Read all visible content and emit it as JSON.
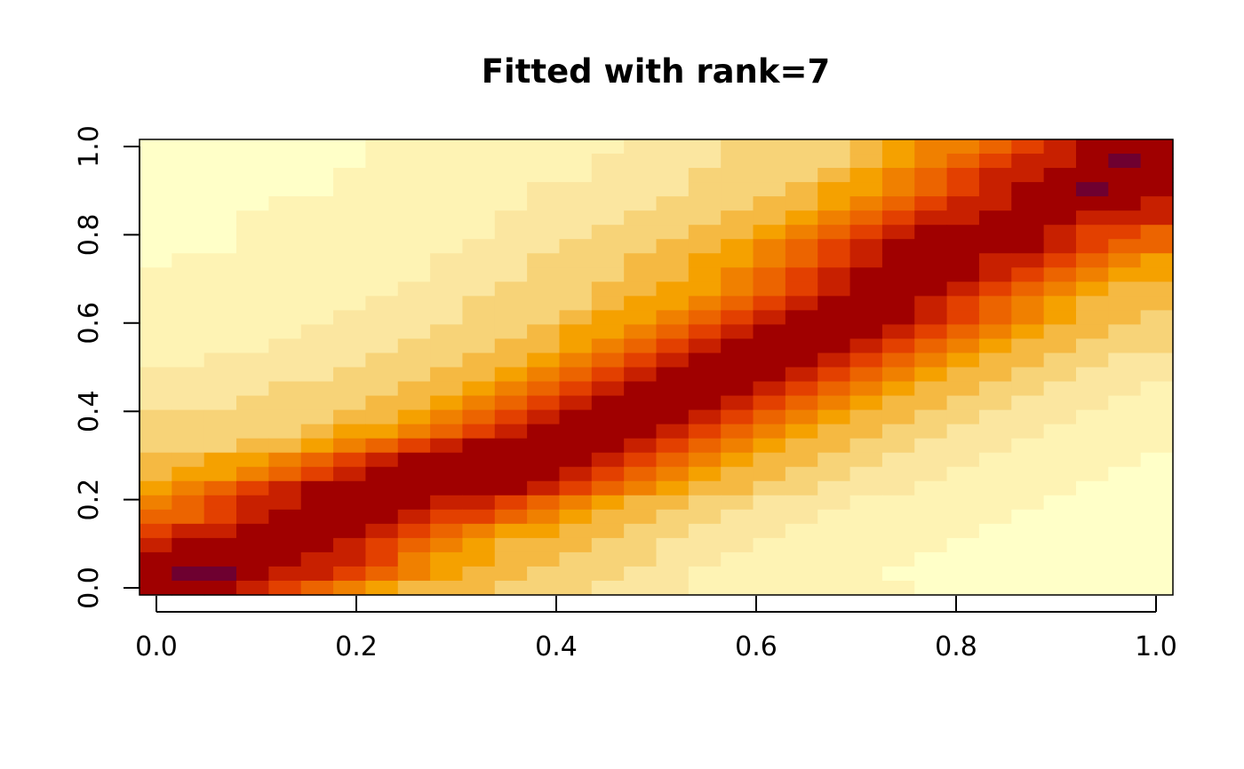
{
  "chart_data": {
    "type": "heatmap",
    "title": "Fitted with rank=7",
    "xlabel": "",
    "ylabel": "",
    "xlim": [
      0,
      1
    ],
    "ylim": [
      0,
      1
    ],
    "x_ticks": [
      {
        "value": 0.0,
        "label": "0.0"
      },
      {
        "value": 0.2,
        "label": "0.2"
      },
      {
        "value": 0.4,
        "label": "0.4"
      },
      {
        "value": 0.6,
        "label": "0.6"
      },
      {
        "value": 0.8,
        "label": "0.8"
      },
      {
        "value": 1.0,
        "label": "1.0"
      }
    ],
    "y_ticks": [
      {
        "value": 0.0,
        "label": "0.0"
      },
      {
        "value": 0.2,
        "label": "0.2"
      },
      {
        "value": 0.4,
        "label": "0.4"
      },
      {
        "value": 0.6,
        "label": "0.6"
      },
      {
        "value": 0.8,
        "label": "0.8"
      },
      {
        "value": 1.0,
        "label": "1.0"
      }
    ],
    "grid": false,
    "legend": "none",
    "colormap": "heat (dark red = high, light yellow = low)",
    "palette": [
      "#FFFFC8",
      "#FEF3B4",
      "#FBE6A0",
      "#F7D378",
      "#F5B942",
      "#F5A100",
      "#F08000",
      "#EC6400",
      "#E34000",
      "#C82000",
      "#A00000",
      "#6E0030"
    ],
    "n_cols": 32,
    "n_rows": 32,
    "values_description": "rows listed from y=1.0 (top) to y=0.0 (bottom); value index into palette (0 = lowest, 11 = highest)",
    "values": [
      [
        0,
        0,
        0,
        0,
        0,
        0,
        0,
        1,
        1,
        1,
        1,
        1,
        1,
        1,
        1,
        2,
        2,
        2,
        3,
        3,
        3,
        3,
        4,
        5,
        6,
        6,
        7,
        8,
        9,
        10,
        10,
        10
      ],
      [
        0,
        0,
        0,
        0,
        0,
        0,
        0,
        1,
        1,
        1,
        1,
        1,
        1,
        1,
        2,
        2,
        2,
        2,
        3,
        3,
        3,
        3,
        4,
        5,
        6,
        7,
        8,
        9,
        9,
        10,
        11,
        10
      ],
      [
        0,
        0,
        0,
        0,
        0,
        0,
        1,
        1,
        1,
        1,
        1,
        1,
        1,
        1,
        2,
        2,
        2,
        3,
        3,
        3,
        3,
        4,
        5,
        6,
        7,
        8,
        9,
        9,
        10,
        10,
        10,
        10
      ],
      [
        0,
        0,
        0,
        0,
        0,
        0,
        1,
        1,
        1,
        1,
        1,
        1,
        2,
        2,
        2,
        2,
        2,
        3,
        3,
        3,
        4,
        5,
        5,
        6,
        7,
        8,
        9,
        10,
        10,
        11,
        10,
        10
      ],
      [
        0,
        0,
        0,
        0,
        1,
        1,
        1,
        1,
        1,
        1,
        1,
        1,
        2,
        2,
        2,
        2,
        3,
        3,
        3,
        4,
        4,
        5,
        6,
        7,
        8,
        9,
        9,
        10,
        10,
        10,
        10,
        9
      ],
      [
        0,
        0,
        0,
        1,
        1,
        1,
        1,
        1,
        1,
        1,
        1,
        2,
        2,
        2,
        2,
        3,
        3,
        3,
        4,
        4,
        5,
        6,
        7,
        8,
        9,
        9,
        10,
        10,
        10,
        9,
        9,
        9
      ],
      [
        0,
        0,
        0,
        1,
        1,
        1,
        1,
        1,
        1,
        1,
        1,
        2,
        2,
        2,
        3,
        3,
        3,
        4,
        4,
        5,
        6,
        7,
        8,
        9,
        10,
        10,
        10,
        10,
        9,
        8,
        8,
        7
      ],
      [
        0,
        0,
        0,
        1,
        1,
        1,
        1,
        1,
        1,
        1,
        2,
        2,
        2,
        3,
        3,
        3,
        4,
        4,
        5,
        6,
        7,
        8,
        9,
        10,
        10,
        10,
        10,
        10,
        9,
        8,
        7,
        7
      ],
      [
        0,
        1,
        1,
        1,
        1,
        1,
        1,
        1,
        1,
        2,
        2,
        2,
        3,
        3,
        3,
        4,
        4,
        5,
        5,
        6,
        7,
        8,
        9,
        10,
        10,
        10,
        9,
        9,
        8,
        7,
        6,
        5
      ],
      [
        1,
        1,
        1,
        1,
        1,
        1,
        1,
        1,
        1,
        2,
        2,
        2,
        3,
        3,
        3,
        4,
        4,
        5,
        6,
        7,
        8,
        9,
        10,
        10,
        10,
        10,
        9,
        8,
        7,
        6,
        5,
        5
      ],
      [
        1,
        1,
        1,
        1,
        1,
        1,
        1,
        1,
        2,
        2,
        2,
        3,
        3,
        3,
        4,
        4,
        5,
        5,
        6,
        7,
        8,
        9,
        10,
        10,
        10,
        9,
        8,
        7,
        6,
        5,
        4,
        4
      ],
      [
        1,
        1,
        1,
        1,
        1,
        1,
        1,
        2,
        2,
        2,
        3,
        3,
        3,
        3,
        4,
        5,
        5,
        6,
        7,
        8,
        9,
        10,
        10,
        10,
        9,
        8,
        7,
        6,
        5,
        4,
        4,
        4
      ],
      [
        1,
        1,
        1,
        1,
        1,
        1,
        2,
        2,
        2,
        2,
        3,
        3,
        3,
        4,
        5,
        5,
        6,
        7,
        8,
        9,
        10,
        10,
        10,
        10,
        9,
        8,
        7,
        6,
        5,
        4,
        4,
        3
      ],
      [
        1,
        1,
        1,
        1,
        1,
        2,
        2,
        2,
        2,
        3,
        3,
        3,
        4,
        5,
        5,
        6,
        7,
        8,
        9,
        10,
        10,
        10,
        10,
        9,
        8,
        7,
        6,
        5,
        4,
        4,
        3,
        3
      ],
      [
        1,
        1,
        1,
        1,
        2,
        2,
        2,
        2,
        3,
        3,
        3,
        4,
        4,
        5,
        6,
        7,
        8,
        9,
        10,
        10,
        10,
        10,
        9,
        8,
        7,
        6,
        5,
        4,
        4,
        3,
        3,
        3
      ],
      [
        1,
        1,
        2,
        2,
        2,
        2,
        2,
        3,
        3,
        3,
        4,
        4,
        5,
        6,
        7,
        8,
        9,
        10,
        10,
        10,
        10,
        9,
        8,
        7,
        6,
        5,
        4,
        4,
        3,
        3,
        2,
        2
      ],
      [
        2,
        2,
        2,
        2,
        2,
        2,
        3,
        3,
        3,
        4,
        4,
        5,
        6,
        7,
        8,
        9,
        10,
        10,
        10,
        10,
        9,
        8,
        7,
        6,
        5,
        4,
        4,
        3,
        3,
        2,
        2,
        2
      ],
      [
        2,
        2,
        2,
        2,
        3,
        3,
        3,
        3,
        4,
        4,
        5,
        6,
        7,
        8,
        9,
        10,
        10,
        10,
        10,
        9,
        8,
        7,
        6,
        5,
        4,
        4,
        3,
        3,
        2,
        2,
        2,
        1
      ],
      [
        2,
        2,
        2,
        3,
        3,
        3,
        3,
        4,
        4,
        5,
        6,
        7,
        8,
        9,
        10,
        10,
        10,
        10,
        9,
        8,
        7,
        6,
        5,
        4,
        4,
        3,
        3,
        2,
        2,
        2,
        1,
        1
      ],
      [
        3,
        3,
        3,
        3,
        3,
        3,
        4,
        4,
        5,
        6,
        7,
        8,
        9,
        10,
        10,
        10,
        10,
        9,
        8,
        7,
        6,
        5,
        4,
        4,
        3,
        3,
        2,
        2,
        2,
        1,
        1,
        1
      ],
      [
        3,
        3,
        3,
        3,
        3,
        4,
        5,
        5,
        6,
        7,
        8,
        9,
        10,
        10,
        10,
        10,
        9,
        8,
        7,
        6,
        5,
        4,
        4,
        3,
        3,
        2,
        2,
        2,
        1,
        1,
        1,
        1
      ],
      [
        3,
        3,
        3,
        4,
        4,
        5,
        6,
        7,
        8,
        9,
        10,
        10,
        10,
        10,
        10,
        9,
        8,
        7,
        6,
        5,
        4,
        4,
        3,
        3,
        2,
        2,
        2,
        1,
        1,
        1,
        1,
        1
      ],
      [
        4,
        4,
        5,
        5,
        6,
        7,
        8,
        9,
        10,
        10,
        10,
        10,
        10,
        10,
        9,
        8,
        7,
        6,
        5,
        4,
        4,
        3,
        3,
        2,
        2,
        2,
        1,
        1,
        1,
        1,
        1,
        0
      ],
      [
        4,
        5,
        5,
        6,
        7,
        8,
        9,
        10,
        10,
        10,
        10,
        10,
        10,
        9,
        8,
        7,
        6,
        5,
        4,
        4,
        3,
        3,
        2,
        2,
        2,
        1,
        1,
        1,
        1,
        1,
        0,
        0
      ],
      [
        5,
        6,
        7,
        8,
        9,
        10,
        10,
        10,
        10,
        10,
        10,
        10,
        9,
        8,
        7,
        6,
        5,
        4,
        4,
        3,
        3,
        2,
        2,
        2,
        1,
        1,
        1,
        1,
        1,
        0,
        0,
        0
      ],
      [
        6,
        7,
        8,
        9,
        9,
        10,
        10,
        10,
        10,
        9,
        9,
        8,
        7,
        6,
        5,
        4,
        4,
        3,
        3,
        2,
        2,
        2,
        1,
        1,
        1,
        1,
        1,
        1,
        0,
        0,
        0,
        0
      ],
      [
        7,
        7,
        8,
        9,
        10,
        10,
        10,
        10,
        9,
        8,
        8,
        7,
        6,
        5,
        4,
        4,
        3,
        3,
        2,
        2,
        2,
        1,
        1,
        1,
        1,
        1,
        1,
        0,
        0,
        0,
        0,
        0
      ],
      [
        8,
        9,
        9,
        10,
        10,
        10,
        10,
        9,
        8,
        7,
        6,
        5,
        5,
        4,
        4,
        3,
        3,
        2,
        2,
        2,
        1,
        1,
        1,
        1,
        1,
        1,
        0,
        0,
        0,
        0,
        0,
        0
      ],
      [
        9,
        10,
        10,
        10,
        10,
        10,
        9,
        8,
        7,
        6,
        5,
        4,
        4,
        4,
        3,
        3,
        2,
        2,
        2,
        1,
        1,
        1,
        1,
        1,
        1,
        0,
        0,
        0,
        0,
        0,
        0,
        0
      ],
      [
        10,
        10,
        10,
        10,
        10,
        9,
        9,
        8,
        6,
        5,
        5,
        4,
        4,
        3,
        3,
        3,
        2,
        2,
        1,
        1,
        1,
        1,
        1,
        1,
        0,
        0,
        0,
        0,
        0,
        0,
        0,
        0
      ],
      [
        10,
        11,
        11,
        10,
        9,
        9,
        8,
        7,
        6,
        5,
        4,
        4,
        3,
        3,
        3,
        2,
        2,
        1,
        1,
        1,
        1,
        1,
        1,
        0,
        0,
        0,
        0,
        0,
        0,
        0,
        0,
        0
      ],
      [
        10,
        10,
        10,
        9,
        8,
        7,
        6,
        5,
        4,
        4,
        4,
        3,
        3,
        3,
        2,
        2,
        2,
        1,
        1,
        1,
        1,
        1,
        1,
        1,
        0,
        0,
        0,
        0,
        0,
        0,
        0,
        0
      ]
    ]
  }
}
